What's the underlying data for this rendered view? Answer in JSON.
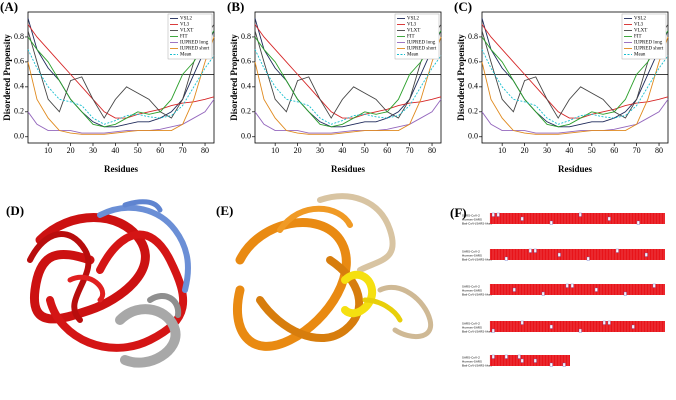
{
  "chart_data": [
    {
      "type": "line",
      "panel_label": "(A)",
      "xlabel": "Residues",
      "ylabel": "Disordered Propensity",
      "x": [
        1,
        5,
        10,
        15,
        20,
        25,
        30,
        35,
        40,
        45,
        50,
        55,
        60,
        65,
        70,
        75,
        80,
        84
      ],
      "xlim": [
        1,
        84
      ],
      "ylim": [
        -0.05,
        1.0
      ],
      "xticks": [
        10,
        20,
        30,
        40,
        50,
        60,
        70,
        80
      ],
      "yticks": [
        {
          "value": 0,
          "label": "0.0"
        },
        {
          "value": 0.2,
          "label": "0.2"
        },
        {
          "value": 0.4,
          "label": "0.4"
        },
        {
          "value": 0.6,
          "label": "0.6"
        },
        {
          "value": 0.8,
          "label": "0.8"
        }
      ],
      "threshold": 0.5,
      "legend": "upper right",
      "series": [
        {
          "name": "VSL2",
          "color": "#1f2a5a",
          "values": [
            0.95,
            0.7,
            0.55,
            0.45,
            0.3,
            0.2,
            0.12,
            0.08,
            0.08,
            0.1,
            0.12,
            0.12,
            0.15,
            0.2,
            0.3,
            0.5,
            0.7,
            0.85
          ]
        },
        {
          "name": "VL3",
          "color": "#d62728",
          "values": [
            0.9,
            0.8,
            0.7,
            0.6,
            0.5,
            0.4,
            0.3,
            0.2,
            0.15,
            0.15,
            0.18,
            0.2,
            0.22,
            0.25,
            0.27,
            0.28,
            0.3,
            0.32
          ]
        },
        {
          "name": "VLXT",
          "color": "#444444",
          "values": [
            0.85,
            0.6,
            0.3,
            0.2,
            0.45,
            0.48,
            0.3,
            0.15,
            0.3,
            0.4,
            0.35,
            0.3,
            0.2,
            0.15,
            0.3,
            0.6,
            0.8,
            0.9
          ]
        },
        {
          "name": "FIT",
          "color": "#2ca02c",
          "values": [
            0.8,
            0.7,
            0.6,
            0.45,
            0.3,
            0.2,
            0.1,
            0.08,
            0.1,
            0.15,
            0.2,
            0.18,
            0.2,
            0.3,
            0.5,
            0.6,
            0.75,
            0.85
          ]
        },
        {
          "name": "IUPRED long",
          "color": "#9467bd",
          "values": [
            0.2,
            0.1,
            0.05,
            0.05,
            0.05,
            0.03,
            0.03,
            0.03,
            0.04,
            0.05,
            0.05,
            0.05,
            0.06,
            0.08,
            0.1,
            0.15,
            0.2,
            0.3
          ]
        },
        {
          "name": "IUPRED short",
          "color": "#e08a1e",
          "values": [
            0.6,
            0.3,
            0.15,
            0.05,
            0.03,
            0.02,
            0.02,
            0.02,
            0.03,
            0.04,
            0.05,
            0.05,
            0.05,
            0.05,
            0.1,
            0.3,
            0.6,
            0.8
          ]
        },
        {
          "name": "Mean",
          "color": "#17becf",
          "dashed": true,
          "values": [
            0.7,
            0.55,
            0.4,
            0.3,
            0.28,
            0.25,
            0.15,
            0.1,
            0.13,
            0.17,
            0.18,
            0.16,
            0.15,
            0.17,
            0.25,
            0.4,
            0.55,
            0.65
          ]
        }
      ]
    },
    {
      "type": "line",
      "panel_label": "(B)",
      "xlabel": "Residues",
      "ylabel": "Disordered Propensity",
      "x": [
        1,
        5,
        10,
        15,
        20,
        25,
        30,
        35,
        40,
        45,
        50,
        55,
        60,
        65,
        70,
        75,
        80,
        84
      ],
      "xlim": [
        1,
        84
      ],
      "ylim": [
        -0.05,
        1.0
      ],
      "xticks": [
        10,
        20,
        30,
        40,
        50,
        60,
        70,
        80
      ],
      "yticks": [
        {
          "value": 0,
          "label": "0.0"
        },
        {
          "value": 0.2,
          "label": "0.2"
        },
        {
          "value": 0.4,
          "label": "0.4"
        },
        {
          "value": 0.6,
          "label": "0.6"
        },
        {
          "value": 0.8,
          "label": "0.8"
        }
      ],
      "threshold": 0.5,
      "legend": "upper right",
      "series": [
        {
          "name": "VSL2",
          "color": "#1f2a5a",
          "values": [
            0.95,
            0.7,
            0.55,
            0.45,
            0.3,
            0.2,
            0.12,
            0.08,
            0.08,
            0.1,
            0.12,
            0.12,
            0.15,
            0.2,
            0.3,
            0.5,
            0.7,
            0.85
          ]
        },
        {
          "name": "VL3",
          "color": "#d62728",
          "values": [
            0.9,
            0.8,
            0.7,
            0.6,
            0.5,
            0.4,
            0.3,
            0.2,
            0.15,
            0.15,
            0.18,
            0.2,
            0.22,
            0.25,
            0.27,
            0.28,
            0.3,
            0.32
          ]
        },
        {
          "name": "VLXT",
          "color": "#444444",
          "values": [
            0.85,
            0.6,
            0.3,
            0.2,
            0.45,
            0.48,
            0.3,
            0.15,
            0.3,
            0.4,
            0.35,
            0.3,
            0.2,
            0.15,
            0.3,
            0.6,
            0.8,
            0.9
          ]
        },
        {
          "name": "FIT",
          "color": "#2ca02c",
          "values": [
            0.8,
            0.7,
            0.6,
            0.45,
            0.3,
            0.2,
            0.1,
            0.08,
            0.1,
            0.15,
            0.2,
            0.18,
            0.2,
            0.3,
            0.5,
            0.6,
            0.75,
            0.85
          ]
        },
        {
          "name": "IUPRED long",
          "color": "#9467bd",
          "values": [
            0.2,
            0.1,
            0.05,
            0.05,
            0.05,
            0.03,
            0.03,
            0.03,
            0.04,
            0.05,
            0.05,
            0.05,
            0.06,
            0.08,
            0.1,
            0.15,
            0.2,
            0.3
          ]
        },
        {
          "name": "IUPRED short",
          "color": "#e08a1e",
          "values": [
            0.6,
            0.3,
            0.15,
            0.05,
            0.03,
            0.02,
            0.02,
            0.02,
            0.03,
            0.04,
            0.05,
            0.05,
            0.05,
            0.05,
            0.1,
            0.3,
            0.6,
            0.8
          ]
        },
        {
          "name": "Mean",
          "color": "#17becf",
          "dashed": true,
          "values": [
            0.7,
            0.55,
            0.4,
            0.3,
            0.28,
            0.25,
            0.15,
            0.1,
            0.13,
            0.17,
            0.18,
            0.16,
            0.15,
            0.17,
            0.25,
            0.4,
            0.55,
            0.65
          ]
        }
      ]
    },
    {
      "type": "line",
      "panel_label": "(C)",
      "xlabel": "Residues",
      "ylabel": "Disordered Propensity",
      "x": [
        1,
        5,
        10,
        15,
        20,
        25,
        30,
        35,
        40,
        45,
        50,
        55,
        60,
        65,
        70,
        75,
        80,
        84
      ],
      "xlim": [
        1,
        84
      ],
      "ylim": [
        -0.05,
        1.0
      ],
      "xticks": [
        10,
        20,
        30,
        40,
        50,
        60,
        70,
        80
      ],
      "yticks": [
        {
          "value": 0,
          "label": "0.0"
        },
        {
          "value": 0.2,
          "label": "0.2"
        },
        {
          "value": 0.4,
          "label": "0.4"
        },
        {
          "value": 0.6,
          "label": "0.6"
        },
        {
          "value": 0.8,
          "label": "0.8"
        }
      ],
      "threshold": 0.5,
      "legend": "upper right",
      "series": [
        {
          "name": "VSL2",
          "color": "#1f2a5a",
          "values": [
            0.95,
            0.7,
            0.55,
            0.45,
            0.3,
            0.2,
            0.12,
            0.08,
            0.08,
            0.1,
            0.12,
            0.12,
            0.15,
            0.2,
            0.3,
            0.5,
            0.7,
            0.85
          ]
        },
        {
          "name": "VL3",
          "color": "#d62728",
          "values": [
            0.9,
            0.8,
            0.7,
            0.6,
            0.5,
            0.4,
            0.3,
            0.2,
            0.15,
            0.15,
            0.18,
            0.2,
            0.22,
            0.25,
            0.27,
            0.28,
            0.3,
            0.32
          ]
        },
        {
          "name": "VLXT",
          "color": "#444444",
          "values": [
            0.85,
            0.6,
            0.3,
            0.2,
            0.45,
            0.48,
            0.3,
            0.15,
            0.3,
            0.4,
            0.35,
            0.3,
            0.2,
            0.15,
            0.3,
            0.6,
            0.8,
            0.9
          ]
        },
        {
          "name": "FIT",
          "color": "#2ca02c",
          "values": [
            0.8,
            0.7,
            0.6,
            0.45,
            0.3,
            0.2,
            0.1,
            0.08,
            0.1,
            0.15,
            0.2,
            0.18,
            0.2,
            0.3,
            0.5,
            0.6,
            0.75,
            0.85
          ]
        },
        {
          "name": "IUPRED long",
          "color": "#9467bd",
          "values": [
            0.2,
            0.1,
            0.05,
            0.05,
            0.05,
            0.03,
            0.03,
            0.03,
            0.04,
            0.05,
            0.05,
            0.05,
            0.06,
            0.08,
            0.1,
            0.15,
            0.2,
            0.3
          ]
        },
        {
          "name": "IUPRED short",
          "color": "#e08a1e",
          "values": [
            0.6,
            0.3,
            0.15,
            0.05,
            0.03,
            0.02,
            0.02,
            0.02,
            0.03,
            0.04,
            0.05,
            0.05,
            0.05,
            0.05,
            0.1,
            0.3,
            0.6,
            0.8
          ]
        },
        {
          "name": "Mean",
          "color": "#17becf",
          "dashed": true,
          "values": [
            0.7,
            0.55,
            0.4,
            0.3,
            0.28,
            0.25,
            0.15,
            0.1,
            0.13,
            0.17,
            0.18,
            0.16,
            0.15,
            0.17,
            0.25,
            0.4,
            0.55,
            0.65
          ]
        }
      ]
    }
  ],
  "panels": {
    "D": "(D)",
    "E": "(E)",
    "F": "(F)"
  },
  "alignment": {
    "sequences": [
      "SARS-CoV-2",
      "Human-SARS",
      "Bat-CoV-(SARS-like)"
    ]
  }
}
